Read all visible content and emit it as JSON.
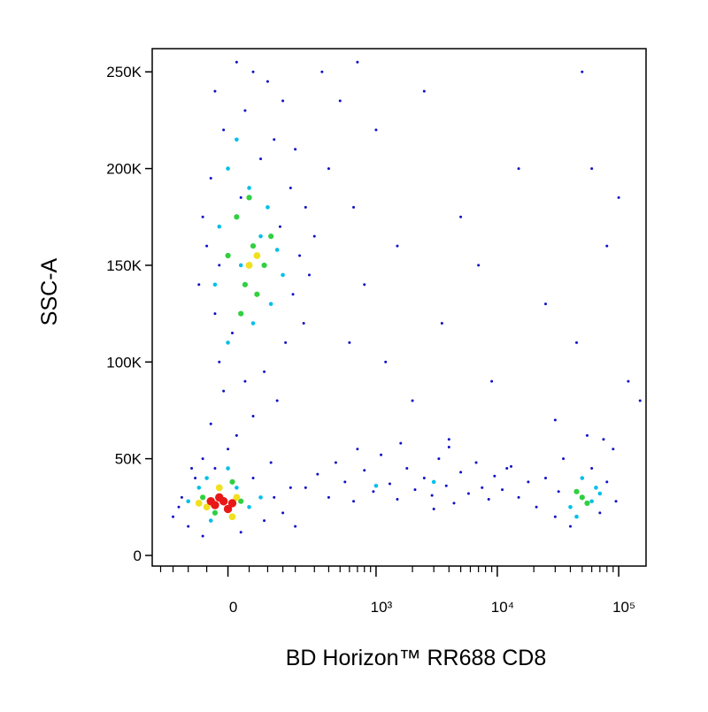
{
  "chart_data": {
    "type": "scatter",
    "xlabel": "BD Horizon™ RR688 CD8",
    "ylabel": "SSC-A",
    "xscale": "biexponential",
    "xlim": [
      -240,
      168000
    ],
    "ylim": [
      -5500,
      262000
    ],
    "xticks": [
      {
        "value": 0,
        "label": "0"
      },
      {
        "value": 1000,
        "label": "10³"
      },
      {
        "value": 10000,
        "label": "10⁴"
      },
      {
        "value": 100000,
        "label": "10⁵"
      }
    ],
    "xminorticks": [
      -200,
      -150,
      -100,
      -50,
      50,
      100,
      150,
      200,
      300,
      400,
      500,
      600,
      700,
      800,
      900,
      2000,
      3000,
      4000,
      5000,
      6000,
      7000,
      8000,
      9000,
      20000,
      30000,
      40000,
      50000,
      60000,
      70000,
      80000,
      90000
    ],
    "yticks": [
      {
        "value": 0,
        "label": "0"
      },
      {
        "value": 50000,
        "label": "50K"
      },
      {
        "value": 100000,
        "label": "100K"
      },
      {
        "value": 150000,
        "label": "150K"
      },
      {
        "value": 200000,
        "label": "200K"
      },
      {
        "value": 250000,
        "label": "250K"
      }
    ],
    "series": [
      {
        "color": "#1010c8",
        "x": [
          -30,
          20,
          60,
          100,
          150,
          40,
          -10,
          120,
          200,
          80,
          -40,
          180,
          30,
          250,
          -60,
          140,
          300,
          -50,
          220,
          -20,
          270,
          -70,
          190,
          -30,
          240,
          10,
          160,
          -20,
          90,
          40,
          -10,
          130,
          60,
          -40,
          20,
          0,
          -60,
          110,
          -90,
          400,
          650,
          1000,
          1500,
          2500,
          800,
          3500,
          5000,
          1200,
          600,
          2000,
          7000,
          9000,
          15000,
          4000,
          25000,
          50000,
          60000,
          100000,
          80000,
          45000,
          120000,
          30000,
          12000,
          150000,
          500,
          350,
          700,
          250,
          320,
          400,
          460,
          550,
          650,
          800,
          950,
          1100,
          1300,
          1500,
          1800,
          2100,
          2500,
          2900,
          3300,
          3800,
          4400,
          5000,
          5800,
          6700,
          7500,
          8500,
          9500,
          11000,
          13000,
          15000,
          18000,
          21000,
          700,
          1600,
          3000,
          4000,
          -150,
          -120,
          -100,
          -80,
          -60,
          -30,
          30,
          60,
          90,
          120,
          150,
          180,
          -130,
          200,
          25000,
          30000,
          35000,
          40000,
          60000,
          70000,
          80000,
          90000,
          95000,
          32000,
          75000,
          55000
        ],
        "values": [
          240000,
          255000,
          250000,
          245000,
          235000,
          230000,
          220000,
          215000,
          210000,
          205000,
          195000,
          190000,
          185000,
          180000,
          175000,
          170000,
          165000,
          160000,
          155000,
          150000,
          145000,
          140000,
          135000,
          125000,
          120000,
          115000,
          110000,
          100000,
          95000,
          90000,
          85000,
          80000,
          72000,
          68000,
          62000,
          55000,
          50000,
          48000,
          45000,
          200000,
          180000,
          220000,
          160000,
          240000,
          140000,
          120000,
          175000,
          100000,
          110000,
          80000,
          150000,
          90000,
          200000,
          60000,
          130000,
          250000,
          200000,
          185000,
          160000,
          110000,
          90000,
          70000,
          45000,
          80000,
          235000,
          250000,
          255000,
          35000,
          42000,
          30000,
          48000,
          38000,
          28000,
          44000,
          33000,
          52000,
          37000,
          29000,
          45000,
          34000,
          40000,
          31000,
          50000,
          36000,
          27000,
          43000,
          32000,
          48000,
          35000,
          29000,
          41000,
          34000,
          46000,
          30000,
          38000,
          25000,
          55000,
          58000,
          24000,
          56000,
          20000,
          30000,
          15000,
          40000,
          10000,
          45000,
          12000,
          40000,
          18000,
          30000,
          22000,
          35000,
          25000,
          15000,
          40000,
          20000,
          50000,
          15000,
          45000,
          22000,
          38000,
          55000,
          28000,
          33000,
          60000,
          62000
        ]
      },
      {
        "color": "#00c0e8",
        "x": [
          0,
          50,
          100,
          -20,
          80,
          130,
          30,
          -30,
          110,
          60,
          0,
          150,
          20,
          -100,
          -70,
          -40,
          20,
          50,
          80,
          -50,
          0,
          40000,
          50000,
          65000,
          45000,
          60000,
          70000,
          1000,
          3000
        ],
        "values": [
          200000,
          190000,
          180000,
          170000,
          165000,
          158000,
          150000,
          140000,
          130000,
          120000,
          110000,
          145000,
          215000,
          28000,
          35000,
          18000,
          35000,
          25000,
          30000,
          40000,
          45000,
          25000,
          40000,
          35000,
          20000,
          28000,
          32000,
          36000,
          38000
        ]
      },
      {
        "color": "#30d040",
        "x": [
          20,
          60,
          90,
          40,
          0,
          70,
          110,
          30,
          50,
          -60,
          30,
          -30,
          10,
          50000,
          55000,
          45000
        ],
        "values": [
          175000,
          160000,
          150000,
          140000,
          155000,
          135000,
          165000,
          125000,
          185000,
          30000,
          28000,
          22000,
          38000,
          30000,
          27000,
          33000
        ]
      },
      {
        "color": "#f0e020",
        "x": [
          -50,
          20,
          -20,
          10,
          -70,
          50,
          70
        ],
        "values": [
          25000,
          30000,
          35000,
          20000,
          27000,
          150000,
          155000
        ]
      },
      {
        "color": "#e81818",
        "x": [
          -30,
          -10,
          0,
          -20,
          -40,
          10
        ],
        "values": [
          26000,
          28000,
          24000,
          30000,
          28000,
          27000
        ]
      }
    ]
  }
}
